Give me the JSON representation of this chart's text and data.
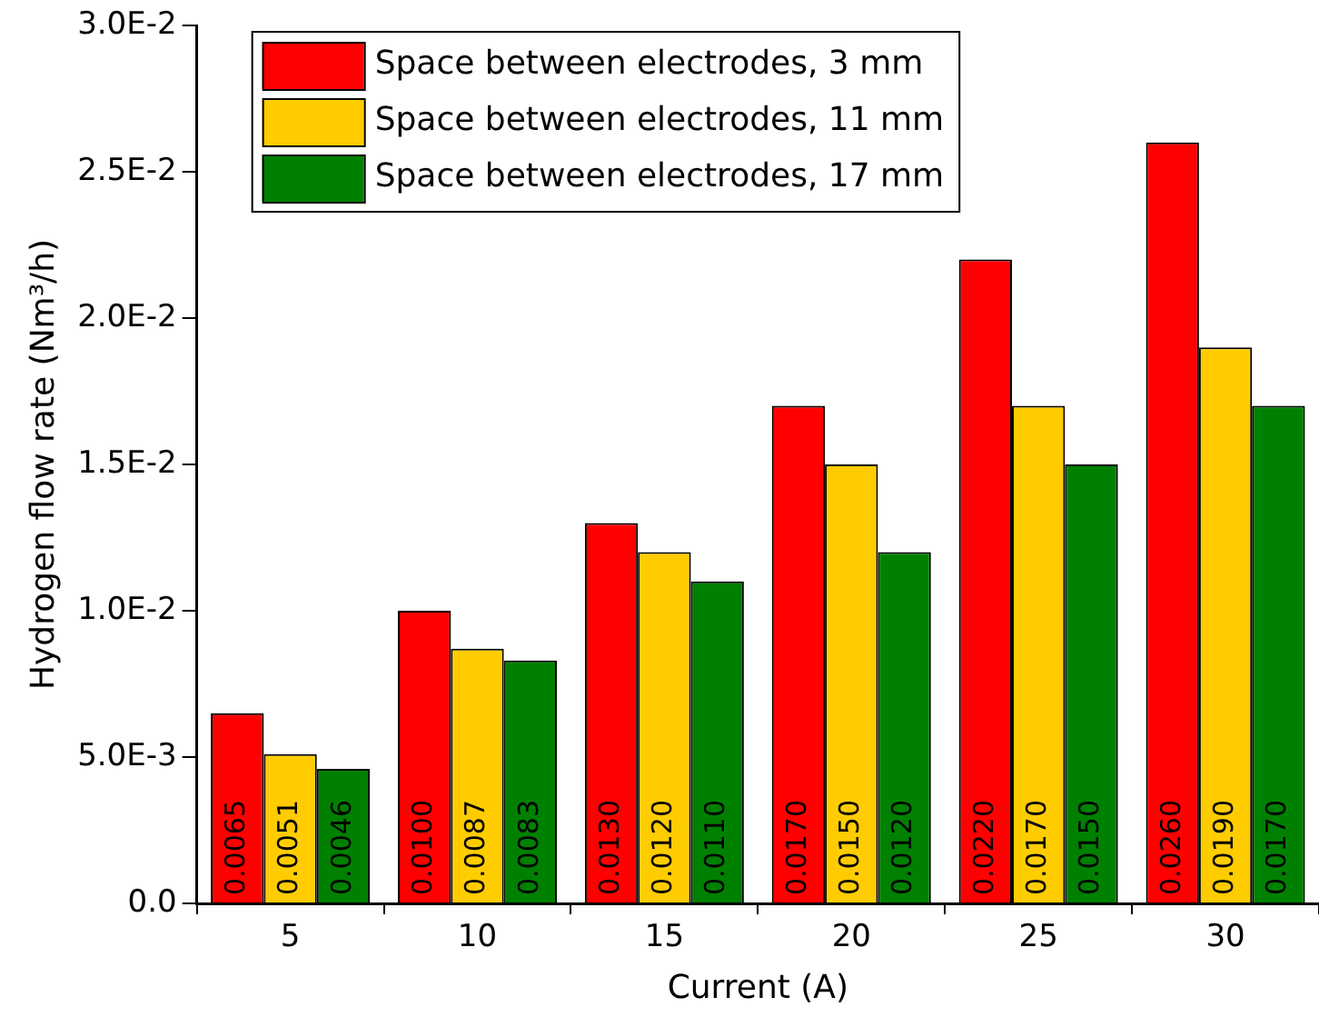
{
  "chart_data": {
    "type": "bar",
    "xlabel": "Current (A)",
    "ylabel": "Hydrogen flow rate (Nm³/h)",
    "categories": [
      "5",
      "10",
      "15",
      "20",
      "25",
      "30"
    ],
    "series": [
      {
        "name": "Space between electrodes, 3 mm",
        "color": "#ff0000",
        "values": [
          0.0065,
          0.01,
          0.013,
          0.017,
          0.022,
          0.026
        ],
        "value_labels": [
          "0.0065",
          "0.0100",
          "0.0130",
          "0.0170",
          "0.0220",
          "0.0260"
        ]
      },
      {
        "name": "Space between electrodes, 11 mm",
        "color": "#ffcc00",
        "values": [
          0.0051,
          0.0087,
          0.012,
          0.015,
          0.017,
          0.019
        ],
        "value_labels": [
          "0.0051",
          "0.0087",
          "0.0120",
          "0.0150",
          "0.0170",
          "0.0190"
        ]
      },
      {
        "name": "Space between electrodes, 17 mm",
        "color": "#008000",
        "values": [
          0.0046,
          0.0083,
          0.011,
          0.012,
          0.015,
          0.017
        ],
        "value_labels": [
          "0.0046",
          "0.0083",
          "0.0110",
          "0.0120",
          "0.0150",
          "0.0170"
        ]
      }
    ],
    "ylim": [
      0,
      0.03
    ],
    "yticks": [
      {
        "value": 0,
        "label": "0.0"
      },
      {
        "value": 0.005,
        "label": "5.0E-3"
      },
      {
        "value": 0.01,
        "label": "1.0E-2"
      },
      {
        "value": 0.015,
        "label": "1.5E-2"
      },
      {
        "value": 0.02,
        "label": "2.0E-2"
      },
      {
        "value": 0.025,
        "label": "2.5E-2"
      },
      {
        "value": 0.03,
        "label": "3.0E-2"
      }
    ],
    "grid": false,
    "legend": "top left"
  }
}
